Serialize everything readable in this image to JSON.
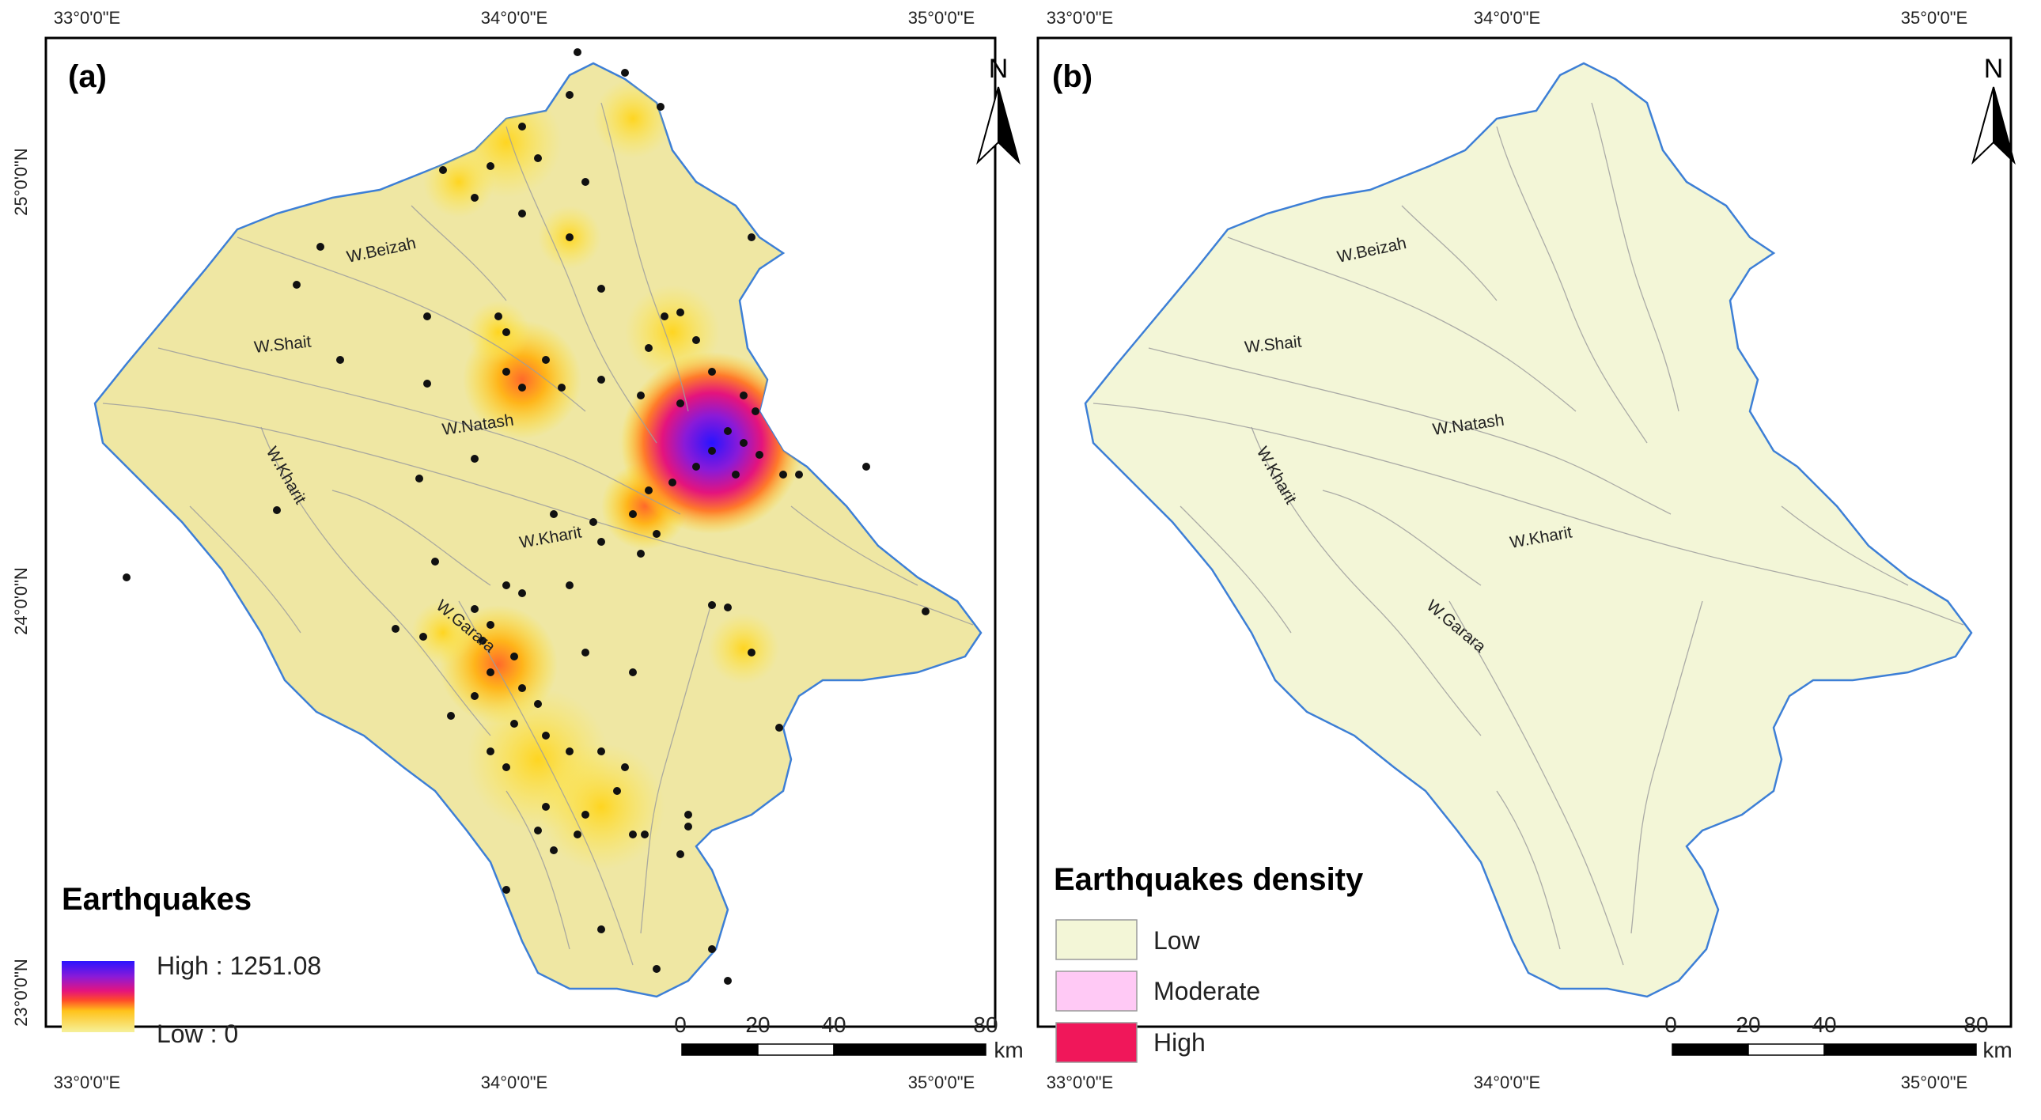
{
  "lon_ticks": [
    "33°0'0\"E",
    "34°0'0\"E",
    "35°0'0\"E"
  ],
  "lat_ticks": [
    "25°0'0\"N",
    "24°0'0\"N",
    "23°0'0\"N"
  ],
  "panel_a": {
    "label": "(a)",
    "north": "N",
    "wadis": [
      "W.Beizah",
      "W.Shait",
      "W.Natash",
      "W.Kharit",
      "W.Kharit",
      "W.Garara"
    ],
    "legend": {
      "title": "Earthquakes",
      "high": "High : 1251.08",
      "low": "Low : 0",
      "gradient_colors": [
        "#2a14ff",
        "#8a1ad8",
        "#e4147d",
        "#ff4a2a",
        "#ffc21a",
        "#f6f19a"
      ]
    },
    "scale": {
      "labels": [
        "0",
        "20",
        "40",
        "80"
      ],
      "unit": "km"
    }
  },
  "panel_b": {
    "label": "(b)",
    "north": "N",
    "wadis": [
      "W.Beizah",
      "W.Shait",
      "W.Natash",
      "W.Kharit",
      "W.Kharit",
      "W.Garara"
    ],
    "legend": {
      "title": "Earthquakes density",
      "items": [
        {
          "label": "Low",
          "color": "#f3f6d7"
        },
        {
          "label": "Moderate",
          "color": "#ffc9f5"
        },
        {
          "label": "High",
          "color": "#f0175a"
        }
      ]
    },
    "scale": {
      "labels": [
        "0",
        "20",
        "40",
        "80"
      ],
      "unit": "km"
    }
  },
  "colors": {
    "basin_a": "#efe7a3",
    "basin_b": "#f3f6d7",
    "boundary": "#3d7fd6",
    "stream": "#9e9e9e"
  }
}
